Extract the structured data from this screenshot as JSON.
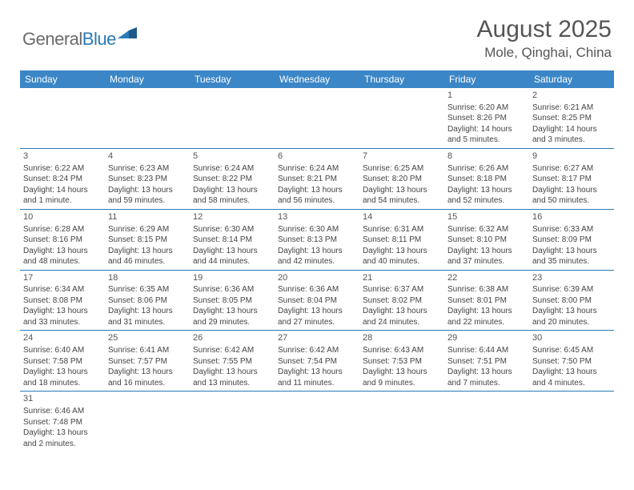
{
  "logo": {
    "text_gray": "General",
    "text_blue": "Blue"
  },
  "title": "August 2025",
  "location": "Mole, Qinghai, China",
  "colors": {
    "header_bg": "#3b86c6",
    "header_text": "#ffffff",
    "cell_border": "#2a7ab8",
    "text": "#444444",
    "title_text": "#555555"
  },
  "weekdays": [
    "Sunday",
    "Monday",
    "Tuesday",
    "Wednesday",
    "Thursday",
    "Friday",
    "Saturday"
  ],
  "weeks": [
    [
      null,
      null,
      null,
      null,
      null,
      {
        "d": "1",
        "sr": "Sunrise: 6:20 AM",
        "ss": "Sunset: 8:26 PM",
        "dl1": "Daylight: 14 hours",
        "dl2": "and 5 minutes."
      },
      {
        "d": "2",
        "sr": "Sunrise: 6:21 AM",
        "ss": "Sunset: 8:25 PM",
        "dl1": "Daylight: 14 hours",
        "dl2": "and 3 minutes."
      }
    ],
    [
      {
        "d": "3",
        "sr": "Sunrise: 6:22 AM",
        "ss": "Sunset: 8:24 PM",
        "dl1": "Daylight: 14 hours",
        "dl2": "and 1 minute."
      },
      {
        "d": "4",
        "sr": "Sunrise: 6:23 AM",
        "ss": "Sunset: 8:23 PM",
        "dl1": "Daylight: 13 hours",
        "dl2": "and 59 minutes."
      },
      {
        "d": "5",
        "sr": "Sunrise: 6:24 AM",
        "ss": "Sunset: 8:22 PM",
        "dl1": "Daylight: 13 hours",
        "dl2": "and 58 minutes."
      },
      {
        "d": "6",
        "sr": "Sunrise: 6:24 AM",
        "ss": "Sunset: 8:21 PM",
        "dl1": "Daylight: 13 hours",
        "dl2": "and 56 minutes."
      },
      {
        "d": "7",
        "sr": "Sunrise: 6:25 AM",
        "ss": "Sunset: 8:20 PM",
        "dl1": "Daylight: 13 hours",
        "dl2": "and 54 minutes."
      },
      {
        "d": "8",
        "sr": "Sunrise: 6:26 AM",
        "ss": "Sunset: 8:18 PM",
        "dl1": "Daylight: 13 hours",
        "dl2": "and 52 minutes."
      },
      {
        "d": "9",
        "sr": "Sunrise: 6:27 AM",
        "ss": "Sunset: 8:17 PM",
        "dl1": "Daylight: 13 hours",
        "dl2": "and 50 minutes."
      }
    ],
    [
      {
        "d": "10",
        "sr": "Sunrise: 6:28 AM",
        "ss": "Sunset: 8:16 PM",
        "dl1": "Daylight: 13 hours",
        "dl2": "and 48 minutes."
      },
      {
        "d": "11",
        "sr": "Sunrise: 6:29 AM",
        "ss": "Sunset: 8:15 PM",
        "dl1": "Daylight: 13 hours",
        "dl2": "and 46 minutes."
      },
      {
        "d": "12",
        "sr": "Sunrise: 6:30 AM",
        "ss": "Sunset: 8:14 PM",
        "dl1": "Daylight: 13 hours",
        "dl2": "and 44 minutes."
      },
      {
        "d": "13",
        "sr": "Sunrise: 6:30 AM",
        "ss": "Sunset: 8:13 PM",
        "dl1": "Daylight: 13 hours",
        "dl2": "and 42 minutes."
      },
      {
        "d": "14",
        "sr": "Sunrise: 6:31 AM",
        "ss": "Sunset: 8:11 PM",
        "dl1": "Daylight: 13 hours",
        "dl2": "and 40 minutes."
      },
      {
        "d": "15",
        "sr": "Sunrise: 6:32 AM",
        "ss": "Sunset: 8:10 PM",
        "dl1": "Daylight: 13 hours",
        "dl2": "and 37 minutes."
      },
      {
        "d": "16",
        "sr": "Sunrise: 6:33 AM",
        "ss": "Sunset: 8:09 PM",
        "dl1": "Daylight: 13 hours",
        "dl2": "and 35 minutes."
      }
    ],
    [
      {
        "d": "17",
        "sr": "Sunrise: 6:34 AM",
        "ss": "Sunset: 8:08 PM",
        "dl1": "Daylight: 13 hours",
        "dl2": "and 33 minutes."
      },
      {
        "d": "18",
        "sr": "Sunrise: 6:35 AM",
        "ss": "Sunset: 8:06 PM",
        "dl1": "Daylight: 13 hours",
        "dl2": "and 31 minutes."
      },
      {
        "d": "19",
        "sr": "Sunrise: 6:36 AM",
        "ss": "Sunset: 8:05 PM",
        "dl1": "Daylight: 13 hours",
        "dl2": "and 29 minutes."
      },
      {
        "d": "20",
        "sr": "Sunrise: 6:36 AM",
        "ss": "Sunset: 8:04 PM",
        "dl1": "Daylight: 13 hours",
        "dl2": "and 27 minutes."
      },
      {
        "d": "21",
        "sr": "Sunrise: 6:37 AM",
        "ss": "Sunset: 8:02 PM",
        "dl1": "Daylight: 13 hours",
        "dl2": "and 24 minutes."
      },
      {
        "d": "22",
        "sr": "Sunrise: 6:38 AM",
        "ss": "Sunset: 8:01 PM",
        "dl1": "Daylight: 13 hours",
        "dl2": "and 22 minutes."
      },
      {
        "d": "23",
        "sr": "Sunrise: 6:39 AM",
        "ss": "Sunset: 8:00 PM",
        "dl1": "Daylight: 13 hours",
        "dl2": "and 20 minutes."
      }
    ],
    [
      {
        "d": "24",
        "sr": "Sunrise: 6:40 AM",
        "ss": "Sunset: 7:58 PM",
        "dl1": "Daylight: 13 hours",
        "dl2": "and 18 minutes."
      },
      {
        "d": "25",
        "sr": "Sunrise: 6:41 AM",
        "ss": "Sunset: 7:57 PM",
        "dl1": "Daylight: 13 hours",
        "dl2": "and 16 minutes."
      },
      {
        "d": "26",
        "sr": "Sunrise: 6:42 AM",
        "ss": "Sunset: 7:55 PM",
        "dl1": "Daylight: 13 hours",
        "dl2": "and 13 minutes."
      },
      {
        "d": "27",
        "sr": "Sunrise: 6:42 AM",
        "ss": "Sunset: 7:54 PM",
        "dl1": "Daylight: 13 hours",
        "dl2": "and 11 minutes."
      },
      {
        "d": "28",
        "sr": "Sunrise: 6:43 AM",
        "ss": "Sunset: 7:53 PM",
        "dl1": "Daylight: 13 hours",
        "dl2": "and 9 minutes."
      },
      {
        "d": "29",
        "sr": "Sunrise: 6:44 AM",
        "ss": "Sunset: 7:51 PM",
        "dl1": "Daylight: 13 hours",
        "dl2": "and 7 minutes."
      },
      {
        "d": "30",
        "sr": "Sunrise: 6:45 AM",
        "ss": "Sunset: 7:50 PM",
        "dl1": "Daylight: 13 hours",
        "dl2": "and 4 minutes."
      }
    ],
    [
      {
        "d": "31",
        "sr": "Sunrise: 6:46 AM",
        "ss": "Sunset: 7:48 PM",
        "dl1": "Daylight: 13 hours",
        "dl2": "and 2 minutes."
      },
      null,
      null,
      null,
      null,
      null,
      null
    ]
  ]
}
